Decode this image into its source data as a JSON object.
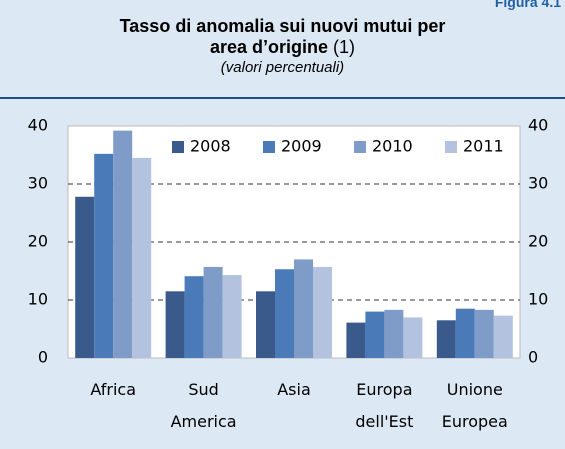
{
  "figure_label": "Figura 4.1",
  "chart_data": {
    "type": "bar",
    "title": "Tasso di anomalia sui nuovi mutui per area d’origine",
    "title_note": "(1)",
    "subtitle": "(valori percentuali)",
    "categories": [
      "Africa",
      "Sud America",
      "Asia",
      "Europa dell'Est",
      "Unione Europea"
    ],
    "series": [
      {
        "name": "2008",
        "color": "#3a5a8c",
        "values": [
          27.8,
          11.5,
          11.5,
          6.1,
          6.5
        ]
      },
      {
        "name": "2009",
        "color": "#4a7ab8",
        "values": [
          35.2,
          14.1,
          15.3,
          8.0,
          8.5
        ]
      },
      {
        "name": "2010",
        "color": "#7f9cc9",
        "values": [
          39.2,
          15.7,
          17.0,
          8.3,
          8.3
        ]
      },
      {
        "name": "2011",
        "color": "#b3c3df",
        "values": [
          34.5,
          14.3,
          15.7,
          7.0,
          7.3
        ]
      }
    ],
    "ylim": [
      0,
      40
    ],
    "yticks": [
      0,
      10,
      20,
      30,
      40
    ],
    "y2lim": [
      0,
      40
    ],
    "y2ticks": [
      0,
      10,
      20,
      30,
      40
    ],
    "grid": true,
    "legend": "top-right"
  }
}
